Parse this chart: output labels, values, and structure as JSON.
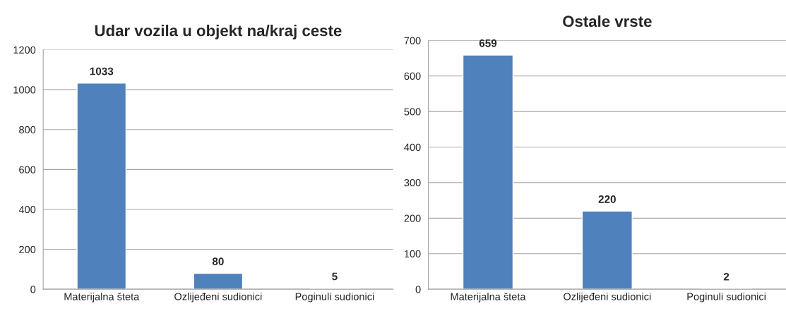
{
  "chart_data": [
    {
      "type": "bar",
      "title": "Udar vozila u objekt na/kraj ceste",
      "categories": [
        "Materijalna šteta",
        "Ozlijeđeni sudionici",
        "Poginuli sudionici"
      ],
      "values": [
        1033,
        80,
        5
      ],
      "color": "#4f81bd",
      "ylim": [
        0,
        1200
      ],
      "yticks": [
        0,
        200,
        400,
        600,
        800,
        1000,
        1200
      ],
      "grid": "y",
      "data_labels": true
    },
    {
      "type": "bar",
      "title": "Ostale vrste",
      "categories": [
        "Materijalna šteta",
        "Ozlijeđeni sudionici",
        "Poginuli sudionici"
      ],
      "values": [
        659,
        220,
        2
      ],
      "color": "#4f81bd",
      "ylim": [
        0,
        700
      ],
      "yticks": [
        0,
        100,
        200,
        300,
        400,
        500,
        600,
        700
      ],
      "grid": "y",
      "data_labels": true
    }
  ]
}
